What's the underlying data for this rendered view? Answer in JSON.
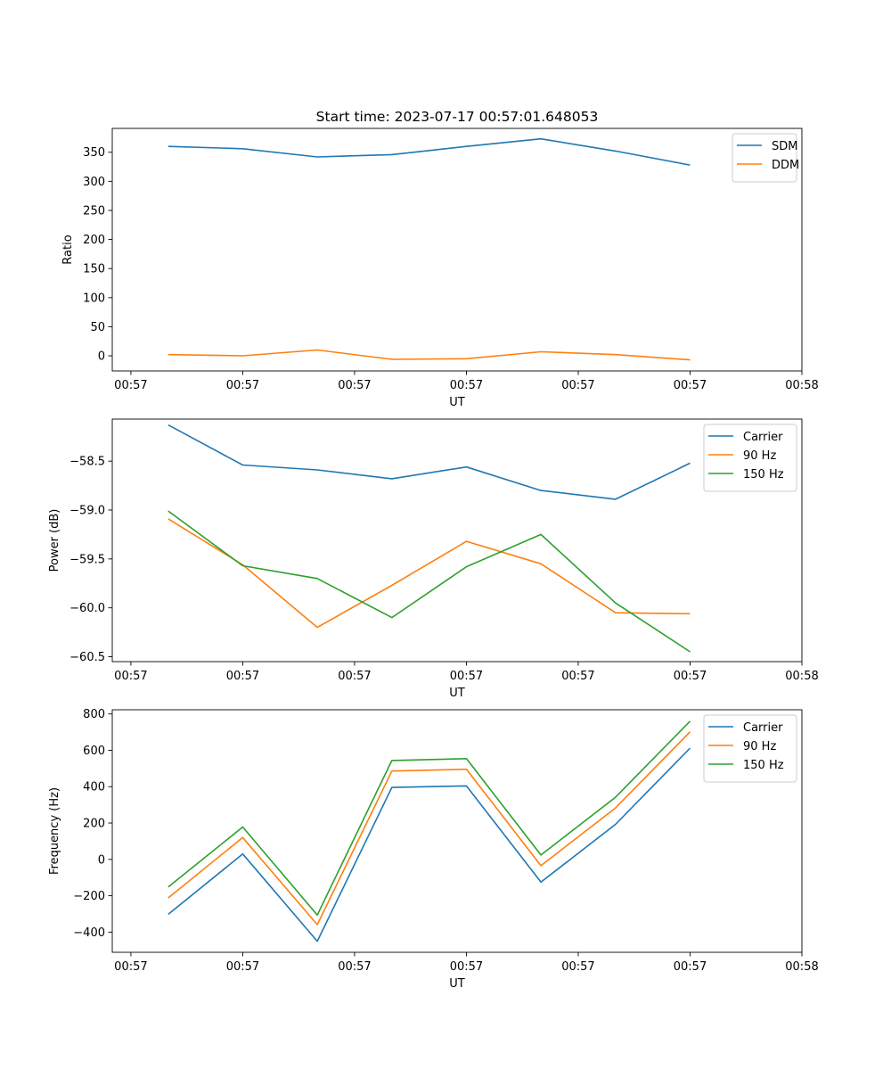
{
  "figure_title": "Start time: 2023-07-17 00:57:01.648053",
  "colors": {
    "c0": "#1f77b4",
    "c1": "#ff7f0e",
    "c2": "#2ca02c",
    "axis": "#000000",
    "legend_border": "#cccccc"
  },
  "chart_data": [
    {
      "type": "line",
      "title": "Start time: 2023-07-17 00:57:01.648053",
      "xlabel": "UT",
      "ylabel": "Ratio",
      "xlim": [
        -0.75,
        8.5
      ],
      "ylim": [
        -26,
        391
      ],
      "x_ticks": [
        {
          "v": -0.5,
          "label": "00:57"
        },
        {
          "v": 1,
          "label": "00:57"
        },
        {
          "v": 2.5,
          "label": "00:57"
        },
        {
          "v": 4,
          "label": "00:57"
        },
        {
          "v": 5.5,
          "label": "00:57"
        },
        {
          "v": 7,
          "label": "00:57"
        },
        {
          "v": 8.5,
          "label": "00:58"
        }
      ],
      "y_ticks": [
        {
          "v": 0,
          "label": "0"
        },
        {
          "v": 50,
          "label": "50"
        },
        {
          "v": 100,
          "label": "100"
        },
        {
          "v": 150,
          "label": "150"
        },
        {
          "v": 200,
          "label": "200"
        },
        {
          "v": 250,
          "label": "250"
        },
        {
          "v": 300,
          "label": "300"
        },
        {
          "v": 350,
          "label": "350"
        }
      ],
      "legend_position": "upper-right",
      "x": [
        0,
        1,
        2,
        3,
        4,
        5,
        6,
        7
      ],
      "series": [
        {
          "name": "SDM",
          "color_key": "c0",
          "values": [
            360,
            356,
            342,
            346,
            360,
            373,
            352,
            328
          ]
        },
        {
          "name": "DDM",
          "color_key": "c1",
          "values": [
            2,
            0,
            10,
            -6,
            -5,
            7,
            2,
            -7
          ]
        }
      ]
    },
    {
      "type": "line",
      "title": "",
      "xlabel": "UT",
      "ylabel": "Power (dB)",
      "xlim": [
        -0.75,
        8.5
      ],
      "ylim": [
        -60.55,
        -58.07
      ],
      "x_ticks": [
        {
          "v": -0.5,
          "label": "00:57"
        },
        {
          "v": 1,
          "label": "00:57"
        },
        {
          "v": 2.5,
          "label": "00:57"
        },
        {
          "v": 4,
          "label": "00:57"
        },
        {
          "v": 5.5,
          "label": "00:57"
        },
        {
          "v": 7,
          "label": "00:57"
        },
        {
          "v": 8.5,
          "label": "00:58"
        }
      ],
      "y_ticks": [
        {
          "v": -58.5,
          "label": "−58.5"
        },
        {
          "v": -59.0,
          "label": "−59.0"
        },
        {
          "v": -59.5,
          "label": "−59.5"
        },
        {
          "v": -60.0,
          "label": "−60.0"
        },
        {
          "v": -60.5,
          "label": "−60.5"
        }
      ],
      "legend_position": "upper-right",
      "x": [
        0,
        1,
        2,
        3,
        4,
        5,
        6,
        7
      ],
      "series": [
        {
          "name": "Carrier",
          "color_key": "c0",
          "values": [
            -58.13,
            -58.54,
            -58.59,
            -58.68,
            -58.56,
            -58.8,
            -58.89,
            -58.52
          ]
        },
        {
          "name": "90 Hz",
          "color_key": "c1",
          "values": [
            -59.09,
            -59.56,
            -60.2,
            -59.77,
            -59.32,
            -59.55,
            -60.05,
            -60.06
          ]
        },
        {
          "name": "150 Hz",
          "color_key": "c2",
          "values": [
            -59.01,
            -59.57,
            -59.7,
            -60.1,
            -59.58,
            -59.25,
            -59.95,
            -60.45
          ]
        }
      ]
    },
    {
      "type": "line",
      "title": "",
      "xlabel": "UT",
      "ylabel": "Frequency (Hz)",
      "xlim": [
        -0.75,
        8.5
      ],
      "ylim": [
        -511,
        823
      ],
      "x_ticks": [
        {
          "v": -0.5,
          "label": "00:57"
        },
        {
          "v": 1,
          "label": "00:57"
        },
        {
          "v": 2.5,
          "label": "00:57"
        },
        {
          "v": 4,
          "label": "00:57"
        },
        {
          "v": 5.5,
          "label": "00:57"
        },
        {
          "v": 7,
          "label": "00:57"
        },
        {
          "v": 8.5,
          "label": "00:58"
        }
      ],
      "y_ticks": [
        {
          "v": -400,
          "label": "−400"
        },
        {
          "v": -200,
          "label": "−200"
        },
        {
          "v": 0,
          "label": "0"
        },
        {
          "v": 200,
          "label": "200"
        },
        {
          "v": 400,
          "label": "400"
        },
        {
          "v": 600,
          "label": "600"
        },
        {
          "v": 800,
          "label": "800"
        }
      ],
      "legend_position": "upper-right",
      "x": [
        0,
        1,
        2,
        3,
        4,
        5,
        6,
        7
      ],
      "series": [
        {
          "name": "Carrier",
          "color_key": "c0",
          "values": [
            -302,
            30,
            -450,
            396,
            404,
            -125,
            193,
            612
          ]
        },
        {
          "name": "90 Hz",
          "color_key": "c1",
          "values": [
            -212,
            120,
            -359,
            486,
            496,
            -35,
            283,
            702
          ]
        },
        {
          "name": "150 Hz",
          "color_key": "c2",
          "values": [
            -152,
            178,
            -306,
            544,
            554,
            24,
            342,
            760
          ]
        }
      ]
    }
  ]
}
